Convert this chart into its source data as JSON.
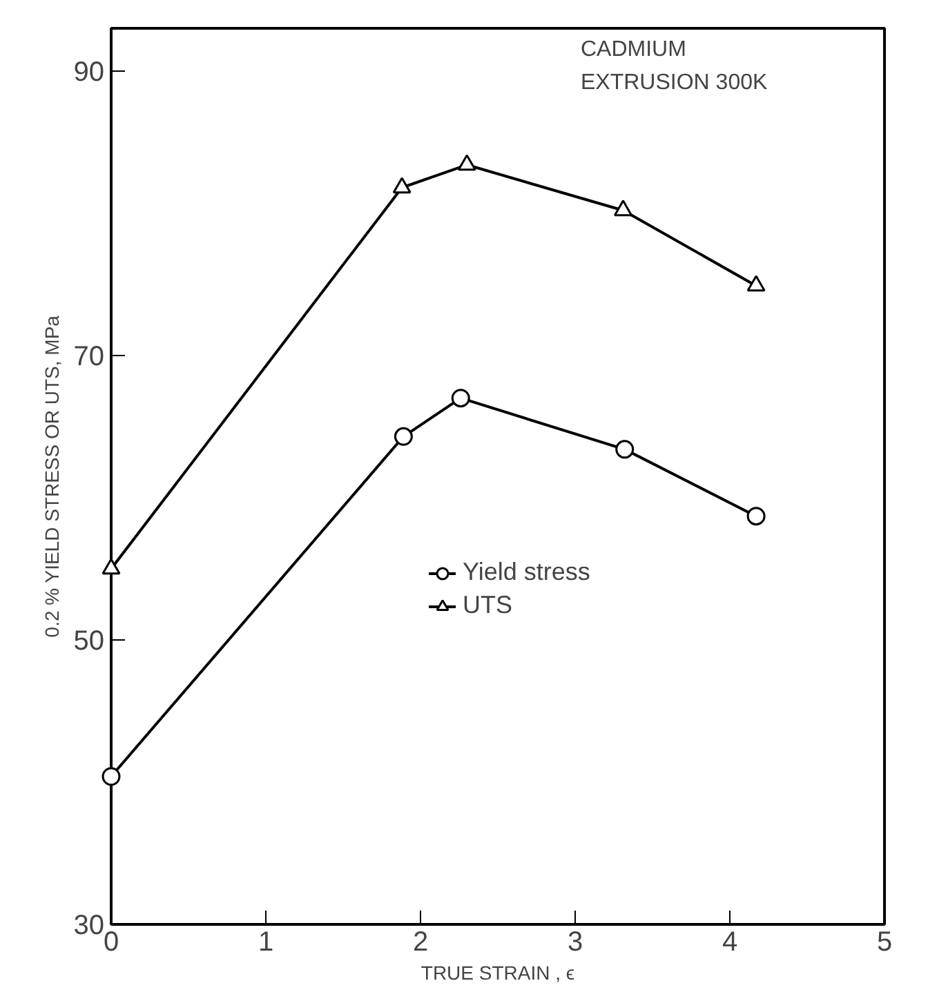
{
  "chart_data": {
    "type": "line",
    "xlabel": "TRUE STRAIN , ϵ",
    "ylabel": "0.2 % YIELD STRESS OR UTS, MPa",
    "annotations": [
      "CADMIUM",
      "EXTRUSION   300K"
    ],
    "xlim": [
      0,
      5
    ],
    "ylim": [
      30,
      93
    ],
    "xticks": [
      0,
      1,
      2,
      3,
      4,
      5
    ],
    "yticks": [
      30,
      50,
      70,
      90
    ],
    "grid": false,
    "legend": "center",
    "line_style": "solid",
    "series": [
      {
        "name": "Yield stress",
        "color": "#000000",
        "marker": "circle",
        "x": [
          0,
          1.89,
          2.26,
          3.32,
          4.17
        ],
        "values": [
          40.4,
          64.3,
          67.0,
          63.4,
          58.7
        ]
      },
      {
        "name": "UTS",
        "color": "#000000",
        "marker": "triangle",
        "x": [
          0,
          1.88,
          2.3,
          3.31,
          4.17
        ],
        "values": [
          55.0,
          81.8,
          83.4,
          80.2,
          74.9
        ]
      }
    ]
  }
}
